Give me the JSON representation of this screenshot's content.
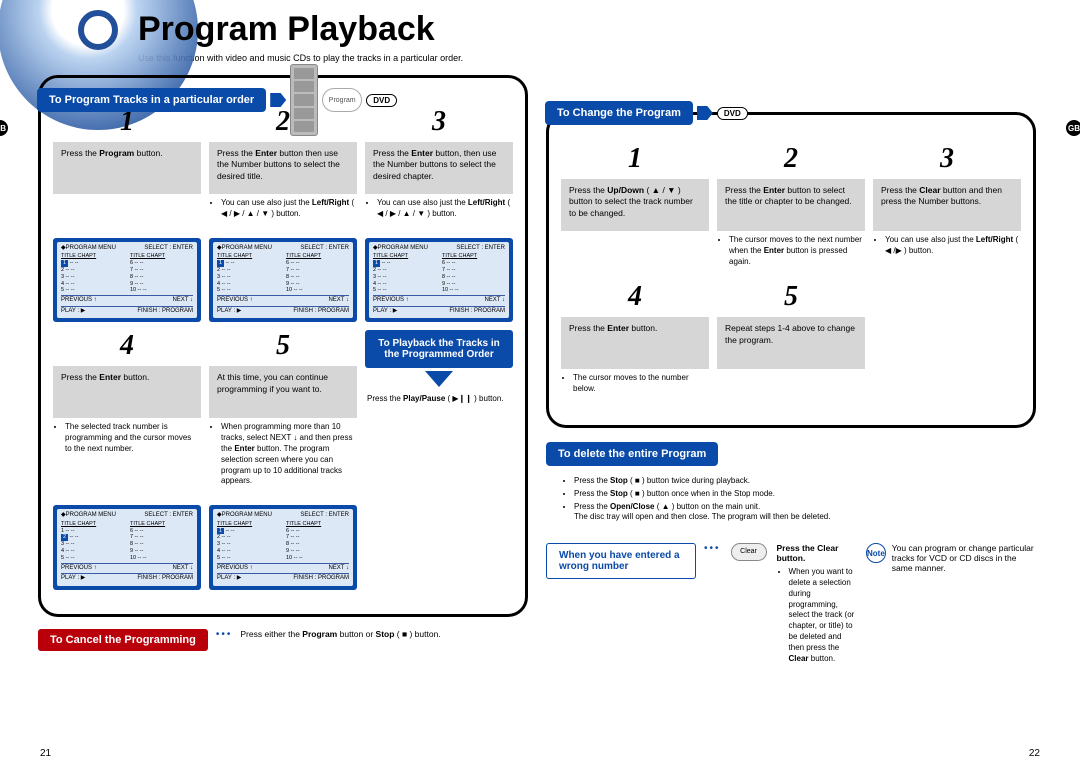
{
  "title": "Program Playback",
  "subtitle": "Use this function with video and music CDs to play the tracks in a particular order.",
  "gb": "GB",
  "dvd": "DVD",
  "left": {
    "header": "To Program Tracks in a particular order",
    "remoteLabel": "Program",
    "steps": {
      "1": "Press the <b>Program</b> button.",
      "2": "Press the <b>Enter</b> button then use the Number buttons to select the desired title.",
      "3": "Press the <b>Enter</b> button, then use the Number buttons to select the desired chapter.",
      "4": "Press the <b>Enter</b> button.",
      "5": "At this time, you can continue programming if you want to."
    },
    "bullet2": "You can use  also just the <b>Left/Right</b> ( ◀ / ▶ / ▲ / ▼ ) button.",
    "bullet3": "You can use also just the <b>Left/Right</b> ( ◀ / ▶ / ▲ / ▼ ) button.",
    "bullet4": "The selected track number is programming and the cursor moves to the next number.",
    "bullet5": "When programming more than 10 tracks, select NEXT ↓ and then press the <b>Enter</b> button. The program selection screen where you can program up to 10 additional tracks appears.",
    "playbackBox": "To Playback the Tracks in the Programmed Order",
    "playpause": "Press the <b>Play/Pause</b> ( ▶❙❙ ) button.",
    "cancel": "To Cancel the Programming",
    "cancelText": "Press either the <b>Program</b> button or <b>Stop</b> ( ■ ) button.",
    "pgnum": "21"
  },
  "right": {
    "header": "To Change the Program",
    "steps": {
      "1": "Press the <b>Up/Down</b> ( ▲ / ▼ ) button to select the track number to be changed.",
      "2": "Press the <b>Enter</b> button to select the title or chapter to be changed.",
      "3": "Press the <b>Clear</b> button and then press the Number buttons.",
      "4": "Press the <b>Enter</b> button.",
      "5": "Repeat steps 1-4 above to change the program."
    },
    "bullet2": "The cursor moves to the next number when the <b>Enter</b> button is pressed again.",
    "bullet3": "You can use also just the <b>Left/Right</b> ( ◀ /▶ ) button.",
    "bullet4": "The cursor moves to the number below.",
    "deleteHdr": "To delete the entire Program",
    "del1": "Press the <b>Stop</b> ( ■ ) button twice during playback.",
    "del2": "Press the <b>Stop</b> ( ■ ) button once when in the Stop mode.",
    "del3": "Press the <b>Open/Close</b> ( ▲ ) button on the main unit.<br>The disc tray will open and then close. The program will then be deleted.",
    "wrong": "When you have entered a wrong number",
    "pressClear": "Press the Clear button.",
    "wrongText": "When you want to delete a selection during programming, select the track (or chapter, or title) to be deleted and then press the <b>Clear</b> button.",
    "noteLabel": "Note",
    "noteText": "You can program or change particular tracks for VCD or CD discs in the same manner.",
    "clearBtn": "Clear",
    "pgnum": "22"
  },
  "screen": {
    "menu": "PROGRAM MENU",
    "select": "SELECT : ENTER",
    "th": "TITLE CHAPT",
    "prev": "PREVIOUS ↑",
    "next": "NEXT ↓",
    "play": "PLAY : ▶",
    "finish": "FINISH : PROGRAM"
  }
}
